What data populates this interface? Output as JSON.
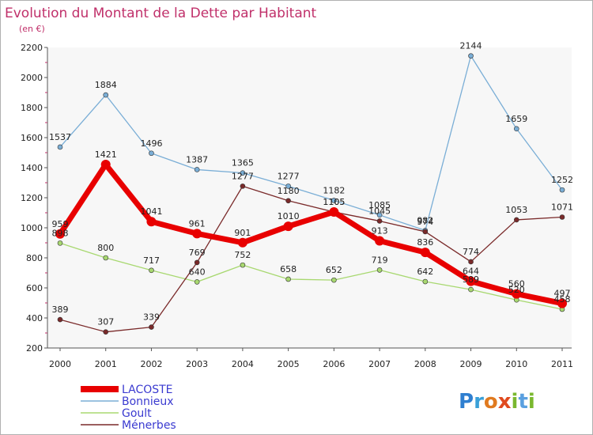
{
  "title": "Evolution du Montant de la Dette par Habitant",
  "subtitle": "(en €)",
  "brand": "Proxiti",
  "colors": {
    "background": "#ffffff",
    "plot_background": "#f7f7f7",
    "title": "#c0306a",
    "legend_text": "#3a3ad0",
    "axis_minor_tick": "#c0306a"
  },
  "chart_data": {
    "type": "line",
    "title": "Evolution du Montant de la Dette par Habitant",
    "subtitle": "(en €)",
    "x": [
      "2000",
      "2001",
      "2002",
      "2003",
      "2004",
      "2005",
      "2006",
      "2007",
      "2008",
      "2009",
      "2010",
      "2011"
    ],
    "ylim": [
      200,
      2200
    ],
    "yticks": [
      "200",
      "400",
      "600",
      "800",
      "1000",
      "1200",
      "1400",
      "1600",
      "1800",
      "2000",
      "2200"
    ],
    "grid": false,
    "legend_position": "bottom-left",
    "series": [
      {
        "name": "LACOSTE",
        "color": "#e80000",
        "width": 7,
        "marker": 6,
        "values": [
          959,
          1421,
          1041,
          961,
          901,
          1010,
          1105,
          913,
          836,
          644,
          560,
          497
        ],
        "labels": [
          "959",
          "1421",
          "1041",
          "961",
          "901",
          "1010",
          "1105",
          "913",
          "836",
          "644",
          "560",
          "497"
        ]
      },
      {
        "name": "Bonnieux",
        "color": "#7aaed6",
        "width": 1.3,
        "marker": 3,
        "values": [
          1537,
          1884,
          1496,
          1387,
          1365,
          1277,
          1182,
          1085,
          982,
          2144,
          1659,
          1252
        ],
        "labels": [
          "1537",
          "1884",
          "1496",
          "1387",
          "1365",
          "1277",
          "1182",
          "1085",
          "982",
          "2144",
          "1659",
          "1252"
        ]
      },
      {
        "name": "Goult",
        "color": "#a8d870",
        "width": 1.3,
        "marker": 3,
        "values": [
          898,
          800,
          717,
          640,
          752,
          658,
          652,
          719,
          642,
          589,
          520,
          458
        ],
        "labels": [
          "898",
          "800",
          "717",
          "640",
          "752",
          "658",
          "652",
          "719",
          "642",
          "589",
          "520",
          "458"
        ]
      },
      {
        "name": "Ménerbes",
        "color": "#7a2a2a",
        "width": 1.3,
        "marker": 3,
        "values": [
          389,
          307,
          339,
          769,
          1277,
          1180,
          1105,
          1045,
          974,
          774,
          1053,
          1071
        ],
        "labels": [
          "389",
          "307",
          "339",
          "769",
          "1277",
          "1180",
          "1105",
          "1045",
          "974",
          "774",
          "1053",
          "1071"
        ]
      }
    ]
  }
}
